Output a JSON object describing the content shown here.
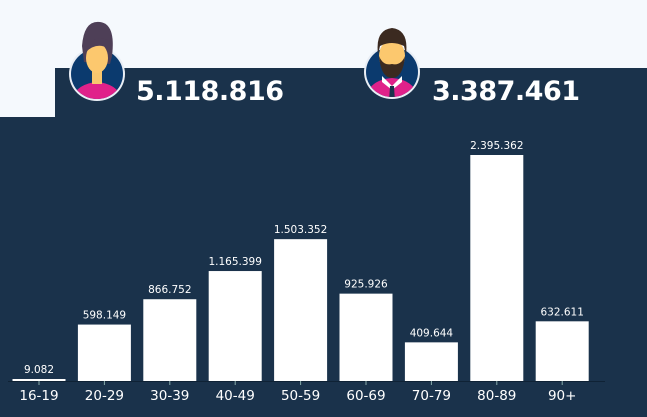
{
  "female": {
    "icon": "female-avatar-icon",
    "total": "5.118.816"
  },
  "male": {
    "icon": "male-avatar-icon",
    "total": "3.387.461"
  },
  "colors": {
    "background": "#f5f9fd",
    "panel": "#1a324b",
    "bar": "#ffffff",
    "pink": "#e0218a",
    "navy": "#0b3a6e"
  },
  "chart_data": {
    "type": "bar",
    "categories": [
      "16-19",
      "20-29",
      "30-39",
      "40-49",
      "50-59",
      "60-69",
      "70-79",
      "80-89",
      "90+"
    ],
    "values": [
      9082,
      598149,
      866752,
      1165399,
      1503352,
      925926,
      409644,
      2395362,
      632611
    ],
    "value_labels": [
      "9.082",
      "598.149",
      "866.752",
      "1.165.399",
      "1.503.352",
      "925.926",
      "409.644",
      "2.395.362",
      "632.611"
    ],
    "title": "",
    "xlabel": "",
    "ylabel": "",
    "ylim": [
      0,
      2395362
    ]
  }
}
